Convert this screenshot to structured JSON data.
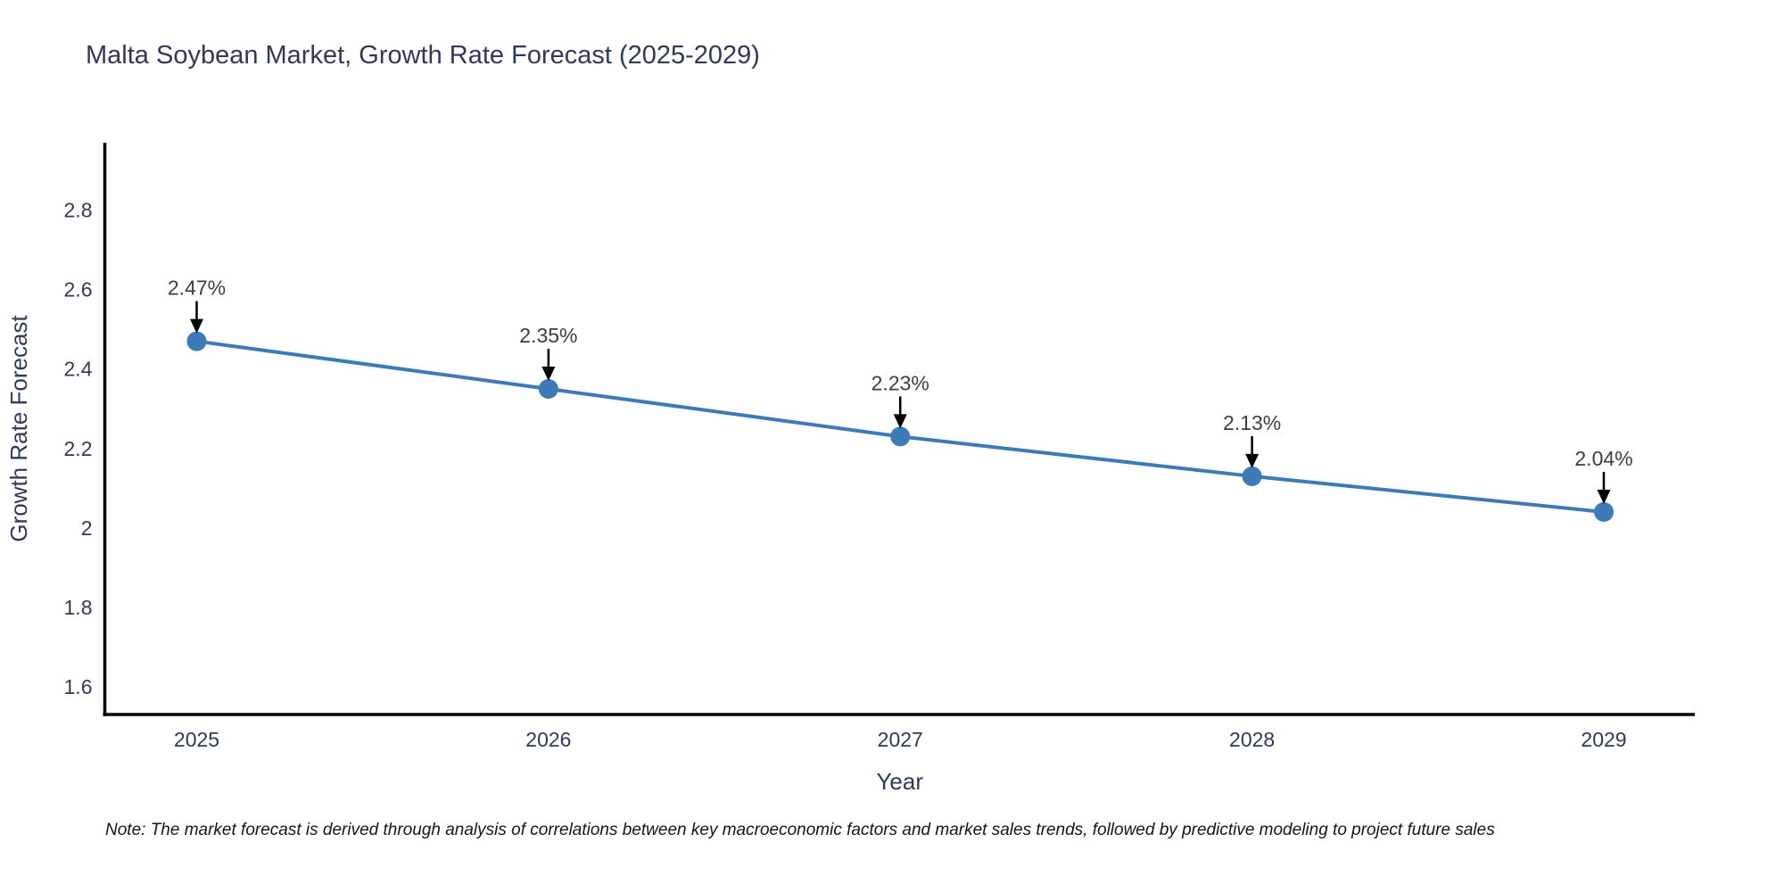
{
  "note": "Note: The market forecast is derived through analysis of correlations between key macroeconomic factors and market sales trends, followed by predictive modeling to project future sales",
  "chart_data": {
    "type": "line",
    "title": "Malta Soybean Market, Growth Rate Forecast (2025-2029)",
    "x": [
      "2025",
      "2026",
      "2027",
      "2028",
      "2029"
    ],
    "series": [
      {
        "name": "Growth Rate Forecast",
        "values": [
          2.47,
          2.35,
          2.23,
          2.13,
          2.04
        ]
      }
    ],
    "point_labels": [
      "2.47%",
      "2.35%",
      "2.23%",
      "2.13%",
      "2.04%"
    ],
    "xlabel": "Year",
    "ylabel": "Growth Rate Forecast",
    "ytick_values": [
      2.8,
      2.6,
      2.4,
      2.2,
      2.0,
      1.8,
      1.6
    ],
    "ytick_labels": [
      "2.8",
      "2.6",
      "2.4",
      "2.2",
      "2",
      "1.8",
      "1.6"
    ],
    "ylim": [
      1.53,
      2.97
    ],
    "grid": false,
    "legend_visible": false,
    "colors": {
      "line": "#3c7ab8",
      "marker": "#3c7ab8",
      "axis": "#000000",
      "text": "#2e3b55",
      "annotation_text": "#3a3e46",
      "arrow": "#000000"
    }
  }
}
